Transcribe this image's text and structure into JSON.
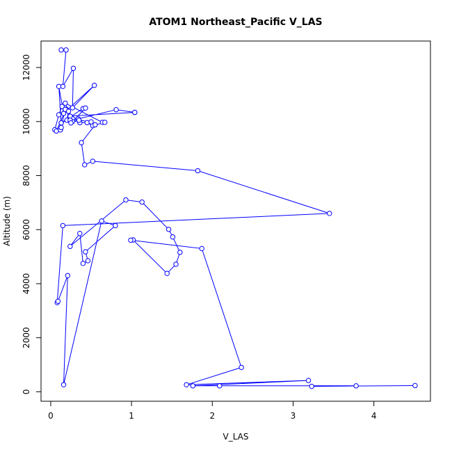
{
  "chart_data": {
    "type": "line",
    "title": "ATOM1 Northeast_Pacific V_LAS",
    "xlabel": "V_LAS",
    "ylabel": "Altitude (m)",
    "xlim": [
      -0.12,
      4.7
    ],
    "ylim": [
      -350,
      12980
    ],
    "xticks": [
      0,
      1,
      2,
      3,
      4
    ],
    "yticks": [
      0,
      2000,
      4000,
      6000,
      8000,
      10000,
      12000
    ],
    "marker": "open-circle",
    "grid": false,
    "legend": "none",
    "color": "#0000ff",
    "series": [
      {
        "x": [
          0.13,
          0.19,
          0.15,
          0.28,
          0.27,
          0.54,
          0.2,
          0.16,
          0.1,
          0.13,
          0.4,
          0.43,
          0.27,
          0.34,
          0.81,
          1.04,
          1.04,
          0.24,
          0.18,
          0.64,
          0.67,
          0.52,
          0.45,
          0.36,
          0.14,
          0.1,
          0.05,
          0.07,
          0.19,
          0.18,
          0.12,
          0.13,
          0.13,
          0.2,
          0.22,
          0.24,
          0.25,
          0.35,
          0.5,
          0.55,
          0.38,
          0.42,
          0.52,
          1.82,
          3.45,
          0.15,
          0.08,
          0.09,
          0.21,
          0.16,
          0.63,
          0.8,
          0.43,
          0.46,
          0.4,
          0.36,
          0.24,
          0.93,
          1.13,
          1.46,
          1.51,
          1.6,
          1.55,
          1.44,
          1.02,
          0.99,
          1.87,
          2.36,
          1.68,
          3.19,
          1.76,
          2.09,
          3.78,
          3.23,
          4.51
        ],
        "y": [
          12650,
          12650,
          11300,
          11970,
          10510,
          11340,
          10420,
          10300,
          11300,
          9950,
          10480,
          10500,
          10000,
          10100,
          10440,
          10340,
          10340,
          10200,
          10680,
          9970,
          9970,
          9850,
          9960,
          9960,
          10560,
          10250,
          9700,
          9650,
          10460,
          10450,
          9690,
          9780,
          9950,
          10050,
          10380,
          10050,
          9950,
          10050,
          9990,
          9880,
          9220,
          8400,
          8530,
          8180,
          6600,
          6150,
          3300,
          3350,
          4300,
          260,
          6320,
          6150,
          5180,
          4850,
          4750,
          5860,
          5380,
          7100,
          7020,
          6010,
          5730,
          5160,
          4720,
          4380,
          5620,
          5610,
          5300,
          900,
          260,
          420,
          220,
          220,
          220,
          200,
          230
        ]
      }
    ]
  }
}
